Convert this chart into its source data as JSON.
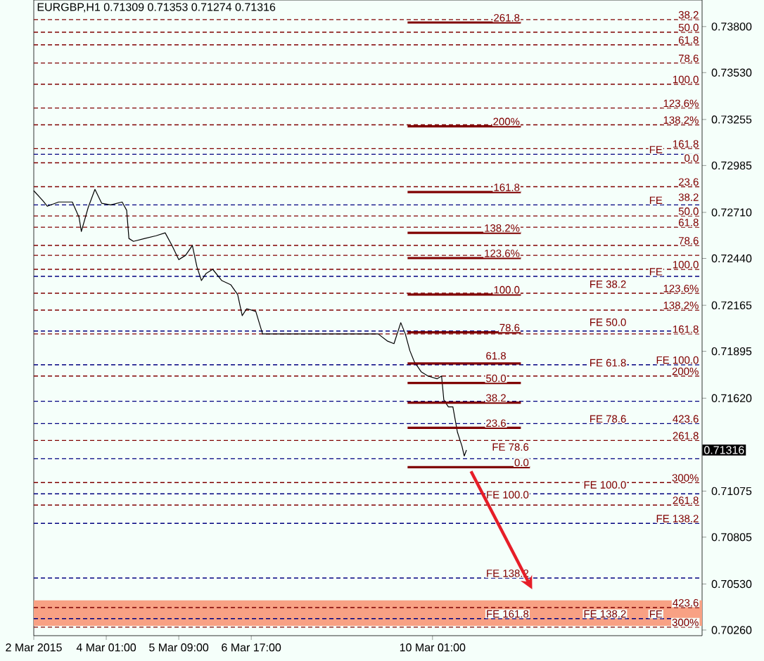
{
  "chart_data": {
    "type": "line",
    "title": "EURGBP,H1  0.71309 0.71353 0.71274 0.71316",
    "xlim": [
      "2015-03-02T17:00",
      "2015-03-15T00:00"
    ],
    "ylim": [
      0.70227,
      0.73956
    ],
    "xticks": [
      {
        "value": "2015-03-02T17:00",
        "label": "2 Mar 2015"
      },
      {
        "value": "2015-03-04T01:00",
        "label": "4 Mar 01:00"
      },
      {
        "value": "2015-03-05T09:00",
        "label": "5 Mar 09:00"
      },
      {
        "value": "2015-03-06T17:00",
        "label": "6 Mar 17:00"
      },
      {
        "value": "2015-03-10T01:00",
        "label": "10 Mar 01:00"
      }
    ],
    "yticks": [
      {
        "value": 0.738,
        "label": "0.73800"
      },
      {
        "value": 0.7353,
        "label": "0.73530"
      },
      {
        "value": 0.73255,
        "label": "0.73255"
      },
      {
        "value": 0.72985,
        "label": "0.72985"
      },
      {
        "value": 0.7271,
        "label": "0.72710"
      },
      {
        "value": 0.7244,
        "label": "0.72440"
      },
      {
        "value": 0.72165,
        "label": "0.72165"
      },
      {
        "value": 0.71895,
        "label": "0.71895"
      },
      {
        "value": 0.7162,
        "label": "0.71620"
      },
      {
        "value": 0.71075,
        "label": "0.71075"
      },
      {
        "value": 0.70805,
        "label": "0.70805"
      },
      {
        "value": 0.7053,
        "label": "0.70530"
      },
      {
        "value": 0.7026,
        "label": "0.70260"
      }
    ],
    "marker": "none",
    "line_style": "solid",
    "series": [
      {
        "color": "#000000",
        "x": [
          "2015-03-02T17:00",
          "2015-03-02T21:00",
          "2015-03-02T23:00",
          "2015-03-03T04:00",
          "2015-03-03T10:00",
          "2015-03-03T13:00",
          "2015-03-03T14:00",
          "2015-03-03T17:00",
          "2015-03-03T20:00",
          "2015-03-03T23:00",
          "2015-03-04T03:00",
          "2015-03-04T08:00",
          "2015-03-04T10:00",
          "2015-03-04T11:00",
          "2015-03-04T13:00",
          "2015-03-04T18:00",
          "2015-03-04T23:00",
          "2015-03-05T03:00",
          "2015-03-05T06:00",
          "2015-03-05T09:00",
          "2015-03-05T12:00",
          "2015-03-05T15:00",
          "2015-03-05T17:00",
          "2015-03-05T19:00",
          "2015-03-05T21:00",
          "2015-03-06T00:00",
          "2015-03-06T04:00",
          "2015-03-06T08:00",
          "2015-03-06T11:00",
          "2015-03-06T13:00",
          "2015-03-06T15:00",
          "2015-03-06T19:00",
          "2015-03-06T22:00",
          "2015-03-09T01:00",
          "2015-03-09T05:00",
          "2015-03-09T08:00",
          "2015-03-09T11:00",
          "2015-03-09T13:00",
          "2015-03-09T15:00",
          "2015-03-09T17:00",
          "2015-03-09T20:00",
          "2015-03-09T23:00",
          "2015-03-10T03:00",
          "2015-03-10T05:00",
          "2015-03-10T06:00",
          "2015-03-10T08:00",
          "2015-03-10T10:00",
          "2015-03-10T12:00",
          "2015-03-10T14:00",
          "2015-03-10T15:00",
          "2015-03-10T16:00"
        ],
        "values": [
          0.72837,
          0.72779,
          0.72746,
          0.72771,
          0.72771,
          0.7268,
          0.72598,
          0.72738,
          0.72845,
          0.72763,
          0.72754,
          0.72771,
          0.72722,
          0.72557,
          0.7254,
          0.72557,
          0.72573,
          0.7259,
          0.72516,
          0.72433,
          0.72458,
          0.72516,
          0.72392,
          0.7231,
          0.72351,
          0.72376,
          0.7231,
          0.72285,
          0.72228,
          0.72104,
          0.72145,
          0.72129,
          0.71997,
          0.71997,
          0.71956,
          0.7194,
          0.72063,
          0.71997,
          0.71899,
          0.71833,
          0.71775,
          0.7175,
          0.71734,
          0.7175,
          0.7161,
          0.71569,
          0.71569,
          0.71421,
          0.71339,
          0.71281,
          0.71316
        ]
      },
      {
        "color": "#800000",
        "x": [
          "2015-03-09T14:00",
          "2015-03-11T16:00"
        ],
        "values": [
          0.73824,
          0.73824
        ]
      },
      {
        "color": "#800000",
        "x": [
          "2015-03-09T14:00",
          "2015-03-11T16:00"
        ],
        "values": [
          0.73215,
          0.73215
        ]
      },
      {
        "color": "#800000",
        "x": [
          "2015-03-09T14:00",
          "2015-03-11T16:00"
        ],
        "values": [
          0.72829,
          0.72829
        ]
      },
      {
        "color": "#800000",
        "x": [
          "2015-03-09T14:00",
          "2015-03-11T16:00"
        ],
        "values": [
          0.7259,
          0.7259
        ]
      },
      {
        "color": "#800000",
        "x": [
          "2015-03-09T14:00",
          "2015-03-11T16:00"
        ],
        "values": [
          0.72442,
          0.72442
        ]
      },
      {
        "color": "#800000",
        "x": [
          "2015-03-09T14:00",
          "2015-03-11T16:00"
        ],
        "values": [
          0.72228,
          0.72228
        ]
      },
      {
        "color": "#800000",
        "x": [
          "2015-03-09T14:00",
          "2015-03-11T16:00"
        ],
        "values": [
          0.72006,
          0.72006
        ]
      },
      {
        "color": "#800000",
        "x": [
          "2015-03-09T14:00",
          "2015-03-11T16:00"
        ],
        "values": [
          0.71824,
          0.71824
        ]
      },
      {
        "color": "#800000",
        "x": [
          "2015-03-09T14:00",
          "2015-03-11T16:00"
        ],
        "values": [
          0.71709,
          0.71709
        ]
      },
      {
        "color": "#800000",
        "x": [
          "2015-03-09T14:00",
          "2015-03-11T16:00"
        ],
        "values": [
          0.71594,
          0.71594
        ]
      },
      {
        "color": "#800000",
        "x": [
          "2015-03-09T14:00",
          "2015-03-11T16:00"
        ],
        "values": [
          0.71446,
          0.71446
        ]
      },
      {
        "color": "#800000",
        "x": [
          "2015-03-09T14:00",
          "2015-03-11T20:00"
        ],
        "values": [
          0.71215,
          0.71215
        ]
      }
    ],
    "bands": [
      {
        "axis": "y",
        "from": 0.70285,
        "to": 0.70434,
        "color": "#f8a184"
      }
    ],
    "ref_lines": [
      {
        "axis": "y",
        "value": 0.73841,
        "color": "#800000",
        "line_style": "dashed"
      },
      {
        "axis": "y",
        "value": 0.73767,
        "color": "#800000",
        "line_style": "dashed"
      },
      {
        "axis": "y",
        "value": 0.73693,
        "color": "#800000",
        "line_style": "dashed"
      },
      {
        "axis": "y",
        "value": 0.73586,
        "color": "#800000",
        "line_style": "dashed"
      },
      {
        "axis": "y",
        "value": 0.73462,
        "color": "#800000",
        "line_style": "dashed"
      },
      {
        "axis": "y",
        "value": 0.73322,
        "color": "#800000",
        "line_style": "dashed"
      },
      {
        "axis": "y",
        "value": 0.73224,
        "color": "#800000",
        "line_style": "dashed"
      },
      {
        "axis": "y",
        "value": 0.73084,
        "color": "#800000",
        "line_style": "dashed"
      },
      {
        "axis": "y",
        "value": 0.73051,
        "color": "#000080",
        "line_style": "dashed"
      },
      {
        "axis": "y",
        "value": 0.73001,
        "color": "#800000",
        "line_style": "dashed"
      },
      {
        "axis": "y",
        "value": 0.72861,
        "color": "#800000",
        "line_style": "dashed"
      },
      {
        "axis": "y",
        "value": 0.72754,
        "color": "#000080",
        "line_style": "dashed"
      },
      {
        "axis": "y",
        "value": 0.72689,
        "color": "#800000",
        "line_style": "dashed"
      },
      {
        "axis": "y",
        "value": 0.72623,
        "color": "#800000",
        "line_style": "dashed"
      },
      {
        "axis": "y",
        "value": 0.72516,
        "color": "#800000",
        "line_style": "dashed"
      },
      {
        "axis": "y",
        "value": 0.72458,
        "color": "#800000",
        "line_style": "dashed"
      },
      {
        "axis": "y",
        "value": 0.72376,
        "color": "#800000",
        "line_style": "dashed"
      },
      {
        "axis": "y",
        "value": 0.72335,
        "color": "#000080",
        "line_style": "dashed"
      },
      {
        "axis": "y",
        "value": 0.72236,
        "color": "#800000",
        "line_style": "dashed"
      },
      {
        "axis": "y",
        "value": 0.72137,
        "color": "#800000",
        "line_style": "dashed"
      },
      {
        "axis": "y",
        "value": 0.72014,
        "color": "#000080",
        "line_style": "dashed"
      },
      {
        "axis": "y",
        "value": 0.71997,
        "color": "#800000",
        "line_style": "dashed"
      },
      {
        "axis": "y",
        "value": 0.71816,
        "color": "#000080",
        "line_style": "dashed"
      },
      {
        "axis": "y",
        "value": 0.7175,
        "color": "#800000",
        "line_style": "dashed"
      },
      {
        "axis": "y",
        "value": 0.71602,
        "color": "#000080",
        "line_style": "dashed"
      },
      {
        "axis": "y",
        "value": 0.71471,
        "color": "#000080",
        "line_style": "dashed"
      },
      {
        "axis": "y",
        "value": 0.71372,
        "color": "#800000",
        "line_style": "dashed"
      },
      {
        "axis": "y",
        "value": 0.71265,
        "color": "#000080",
        "line_style": "dashed"
      },
      {
        "axis": "y",
        "value": 0.71125,
        "color": "#800000",
        "line_style": "dashed"
      },
      {
        "axis": "y",
        "value": 0.71059,
        "color": "#000080",
        "line_style": "dashed"
      },
      {
        "axis": "y",
        "value": 0.70993,
        "color": "#800000",
        "line_style": "dashed"
      },
      {
        "axis": "y",
        "value": 0.70886,
        "color": "#000080",
        "line_style": "dashed"
      },
      {
        "axis": "y",
        "value": 0.70565,
        "color": "#000080",
        "line_style": "dashed"
      },
      {
        "axis": "y",
        "value": 0.70392,
        "color": "#800000",
        "line_style": "dashed"
      },
      {
        "axis": "y",
        "value": 0.70327,
        "color": "#000080",
        "line_style": "dashed"
      },
      {
        "axis": "y",
        "value": 0.70277,
        "color": "#800000",
        "line_style": "dashed"
      }
    ],
    "annotations": [
      {
        "text": "38.2",
        "x": "2015-03-14T23:00",
        "y": 0.73841
      },
      {
        "text": "50.0",
        "x": "2015-03-14T23:00",
        "y": 0.73767
      },
      {
        "text": "61.8",
        "x": "2015-03-14T23:00",
        "y": 0.73693
      },
      {
        "text": "78.6",
        "x": "2015-03-14T23:00",
        "y": 0.73586
      },
      {
        "text": "100.0",
        "x": "2015-03-14T23:00",
        "y": 0.73462
      },
      {
        "text": "123.6%",
        "x": "2015-03-14T23:00",
        "y": 0.73322
      },
      {
        "text": "138.2%",
        "x": "2015-03-14T23:00",
        "y": 0.73224
      },
      {
        "text": "161.8",
        "x": "2015-03-14T23:00",
        "y": 0.73084
      },
      {
        "text": "FE",
        "x": "2015-03-14T07:00",
        "y": 0.73051
      },
      {
        "text": "0.0",
        "x": "2015-03-14T23:00",
        "y": 0.73001
      },
      {
        "text": "23.6",
        "x": "2015-03-14T23:00",
        "y": 0.72861
      },
      {
        "text": "FE",
        "x": "2015-03-14T07:00",
        "y": 0.72754
      },
      {
        "text": "38.2",
        "x": "2015-03-14T23:00",
        "y": 0.72771
      },
      {
        "text": "50.0",
        "x": "2015-03-14T23:00",
        "y": 0.72689
      },
      {
        "text": "61.8",
        "x": "2015-03-14T23:00",
        "y": 0.72623
      },
      {
        "text": "78.6",
        "x": "2015-03-14T23:00",
        "y": 0.72516
      },
      {
        "text": "100.0",
        "x": "2015-03-14T23:00",
        "y": 0.72376
      },
      {
        "text": "FE",
        "x": "2015-03-14T07:00",
        "y": 0.72335
      },
      {
        "text": "123.6%",
        "x": "2015-03-14T23:00",
        "y": 0.72236
      },
      {
        "text": "138.2%",
        "x": "2015-03-14T23:00",
        "y": 0.72137
      },
      {
        "text": "161.8",
        "x": "2015-03-14T23:00",
        "y": 0.71997
      },
      {
        "text": "FE 100.0",
        "x": "2015-03-14T23:00",
        "y": 0.71816
      },
      {
        "text": "200%",
        "x": "2015-03-14T23:00",
        "y": 0.7175
      },
      {
        "text": "423.6",
        "x": "2015-03-14T23:00",
        "y": 0.71471
      },
      {
        "text": "261.8",
        "x": "2015-03-14T23:00",
        "y": 0.71372
      },
      {
        "text": "300%",
        "x": "2015-03-14T23:00",
        "y": 0.71125
      },
      {
        "text": "261.8",
        "x": "2015-03-14T23:00",
        "y": 0.70993
      },
      {
        "text": "FE 138.2",
        "x": "2015-03-14T23:00",
        "y": 0.70886
      },
      {
        "text": "423.6",
        "x": "2015-03-14T23:00",
        "y": 0.70392
      },
      {
        "text": "FE",
        "x": "2015-03-14T07:00",
        "y": 0.70327
      },
      {
        "text": "300%",
        "x": "2015-03-14T23:00",
        "y": 0.70277
      },
      {
        "text": "261.8",
        "x": "2015-03-11T16:00",
        "y": 0.73824
      },
      {
        "text": "200%",
        "x": "2015-03-11T16:00",
        "y": 0.73215
      },
      {
        "text": "161.8",
        "x": "2015-03-11T16:00",
        "y": 0.72829
      },
      {
        "text": "138.2%",
        "x": "2015-03-11T16:00",
        "y": 0.7259
      },
      {
        "text": "123.6%",
        "x": "2015-03-11T16:00",
        "y": 0.72442
      },
      {
        "text": "100.0",
        "x": "2015-03-11T16:00",
        "y": 0.72228
      },
      {
        "text": "FE 38.2",
        "x": "2015-03-13T15:00",
        "y": 0.72261
      },
      {
        "text": "78.6",
        "x": "2015-03-11T16:00",
        "y": 0.72006
      },
      {
        "text": "FE 50.0",
        "x": "2015-03-13T15:00",
        "y": 0.72038
      },
      {
        "text": "61.8",
        "x": "2015-03-11T10:00",
        "y": 0.71841
      },
      {
        "text": "FE 61.8",
        "x": "2015-03-13T15:00",
        "y": 0.718
      },
      {
        "text": "50.0",
        "x": "2015-03-11T10:00",
        "y": 0.71709
      },
      {
        "text": "38.2",
        "x": "2015-03-11T10:00",
        "y": 0.71594
      },
      {
        "text": "23.6",
        "x": "2015-03-11T10:00",
        "y": 0.71446
      },
      {
        "text": "FE 78.6",
        "x": "2015-03-13T15:00",
        "y": 0.71471
      },
      {
        "text": "FE 78.6",
        "x": "2015-03-11T20:00",
        "y": 0.71306
      },
      {
        "text": "0.0",
        "x": "2015-03-11T20:00",
        "y": 0.71215
      },
      {
        "text": "FE 100.0",
        "x": "2015-03-11T20:00",
        "y": 0.71026
      },
      {
        "text": "FE 100.0",
        "x": "2015-03-13T15:00",
        "y": 0.71084
      },
      {
        "text": "FE 138.2",
        "x": "2015-03-11T20:00",
        "y": 0.70565
      },
      {
        "text": "FE 161.8",
        "x": "2015-03-11T20:00",
        "y": 0.70327
      },
      {
        "text": "FE 138.2",
        "x": "2015-03-13T15:00",
        "y": 0.70327
      },
      "0.71316"
    ]
  }
}
